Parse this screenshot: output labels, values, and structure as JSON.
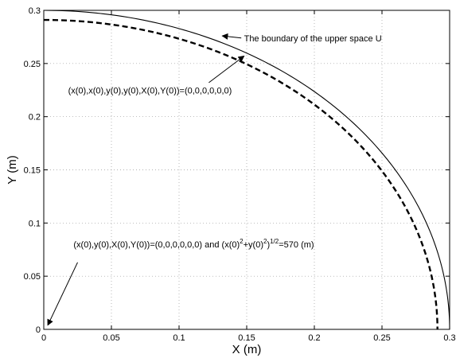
{
  "chart_data": {
    "type": "line",
    "xlabel": "X (m)",
    "ylabel": "Y (m)",
    "xlim": [
      0,
      0.3
    ],
    "ylim": [
      0,
      0.3
    ],
    "x_ticks": [
      "0",
      "0.05",
      "0.1",
      "0.15",
      "0.2",
      "0.25",
      "0.3"
    ],
    "y_ticks": [
      "0",
      "0.05",
      "0.1",
      "0.15",
      "0.2",
      "0.25",
      "0.3"
    ],
    "grid": "dotted",
    "series": [
      {
        "style": "solid",
        "color": "#000000",
        "radius": 0.3,
        "x": [
          0.0,
          0.078,
          0.15,
          0.212,
          0.26,
          0.29,
          0.3
        ],
        "y": [
          0.3,
          0.29,
          0.26,
          0.212,
          0.15,
          0.078,
          0.0
        ]
      },
      {
        "style": "dashed",
        "color": "#000000",
        "radius": 0.291,
        "x": [
          0.0,
          0.075,
          0.1455,
          0.206,
          0.252,
          0.281,
          0.291
        ],
        "y": [
          0.291,
          0.281,
          0.252,
          0.206,
          0.1455,
          0.075,
          0.0
        ]
      }
    ],
    "annotations": [
      {
        "id": "boundary",
        "text": "The boundary of the upper space U",
        "text_pos": [
          0.148,
          0.271
        ],
        "arrow_from": [
          0.146,
          0.274
        ],
        "arrow_to": [
          0.132,
          0.276
        ]
      },
      {
        "id": "initial-zero",
        "text": "(x(0),x(0),y(0),y(0),X(0),Y(0))=(0,0,0,0,0,0)",
        "text_pos": [
          0.018,
          0.222
        ],
        "arrow_from": [
          0.122,
          0.232
        ],
        "arrow_to": [
          0.148,
          0.257
        ]
      },
      {
        "id": "initial-570",
        "text_main": "(x(0),y(0),X(0),Y(0))=(0,0,0,0,0,0)  and (x(0)",
        "sup1": "2",
        "mid": "+y(0)",
        "sup2": "2",
        "paren": ")",
        "sup3": "1/2",
        "tail": "=570 (m)",
        "text_pos": [
          0.022,
          0.077
        ],
        "arrow_from": [
          0.025,
          0.063
        ],
        "arrow_to": [
          0.003,
          0.004
        ]
      }
    ]
  }
}
